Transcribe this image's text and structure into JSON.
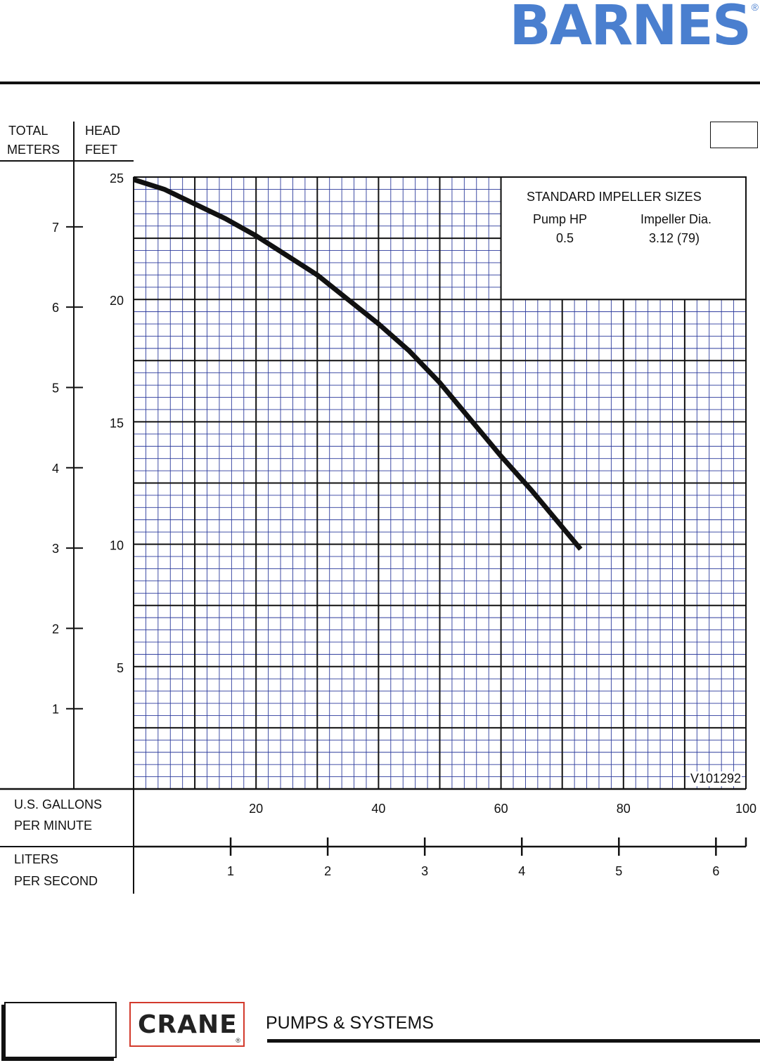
{
  "brand": {
    "name": "BARNES",
    "reg": "®"
  },
  "axis_headers": {
    "left_top": "TOTAL",
    "left_bottom": "METERS",
    "right_top": "HEAD",
    "right_bottom": "FEET"
  },
  "x_axis_labels": {
    "gpm_line1": "U.S. GALLONS",
    "gpm_line2": "PER MINUTE",
    "lps_line1": "LITERS",
    "lps_line2": "PER SECOND"
  },
  "legend": {
    "title": "STANDARD IMPELLER SIZES",
    "col1_header": "Pump HP",
    "col2_header": "Impeller Dia.",
    "col1_value": "0.5",
    "col2_value": "3.12 (79)"
  },
  "chart_id": "V101292",
  "colors": {
    "grid_minor": "#2b3a9c",
    "grid_major": "#111111",
    "curve": "#111111",
    "brand": "#4a7fcf",
    "crane_border": "#d33a2c"
  },
  "chart_data": {
    "type": "line",
    "x_unit": "U.S. GALLONS PER MINUTE",
    "y_unit": "HEAD FEET",
    "xlim": [
      0,
      100
    ],
    "ylim": [
      0,
      25
    ],
    "x_ticks": [
      "20",
      "40",
      "60",
      "80",
      "100"
    ],
    "y_ticks": [
      "5",
      "10",
      "15",
      "20",
      "25"
    ],
    "meters_ticks": [
      "1",
      "2",
      "3",
      "4",
      "5",
      "6",
      "7"
    ],
    "lps_ticks": [
      "1",
      "2",
      "3",
      "4",
      "5",
      "6"
    ],
    "grid": true,
    "series": [
      {
        "x": [
          0,
          5,
          10,
          15,
          20,
          25,
          30,
          35,
          40,
          45,
          50,
          55,
          60,
          65,
          70,
          73
        ],
        "y": [
          24.9,
          24.5,
          23.9,
          23.3,
          22.6,
          21.8,
          21.0,
          20.0,
          19.0,
          17.9,
          16.6,
          15.1,
          13.6,
          12.2,
          10.7,
          9.8
        ]
      }
    ]
  },
  "footer": {
    "crane": "CRANE",
    "crane_reg": "®",
    "tagline": "PUMPS & SYSTEMS"
  }
}
